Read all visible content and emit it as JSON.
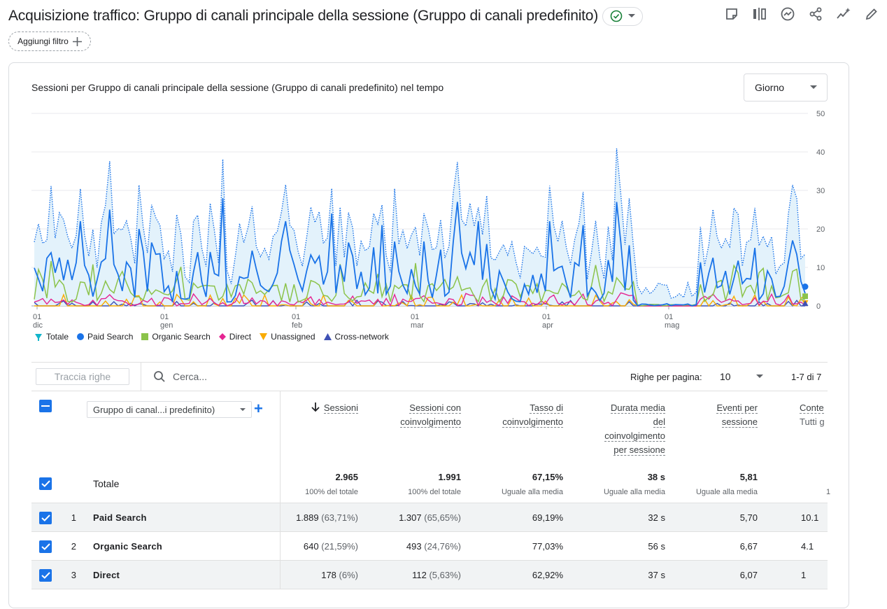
{
  "header": {
    "title": "Acquisizione traffico: Gruppo di canali principale della sessione (Gruppo di canali predefinito)",
    "add_filter_label": "Aggiungi filtro"
  },
  "toolbar_icons": [
    "note-icon",
    "compare-icon",
    "insights-icon",
    "share-icon",
    "sparkle-icon",
    "edit-icon"
  ],
  "chart_card": {
    "title": "Sessioni per Gruppo di canali principale della sessione (Gruppo di canali predefinito) nel tempo",
    "granularity": "Giorno"
  },
  "chart_data": {
    "type": "line",
    "title": "Sessioni per Gruppo di canali principale della sessione (Gruppo di canali predefinito) nel tempo",
    "x_ticks": [
      {
        "day": "01",
        "month": "dic"
      },
      {
        "day": "01",
        "month": "gen"
      },
      {
        "day": "01",
        "month": "feb"
      },
      {
        "day": "01",
        "month": "mar"
      },
      {
        "day": "01",
        "month": "apr"
      },
      {
        "day": "01",
        "month": "mag"
      }
    ],
    "y_ticks": [
      "0",
      "10",
      "20",
      "30",
      "40",
      "50"
    ],
    "ylim": [
      0,
      50
    ],
    "grid": true,
    "legend_position": "bottom-left",
    "series": [
      {
        "name": "Totale",
        "color": "#137333",
        "style": "dotted-area"
      },
      {
        "name": "Paid Search",
        "color": "#1a73e8"
      },
      {
        "name": "Organic Search",
        "color": "#8bc34a"
      },
      {
        "name": "Direct",
        "color": "#e52592"
      },
      {
        "name": "Unassigned",
        "color": "#f9ab00"
      },
      {
        "name": "Cross-network",
        "color": "#3f51b5"
      }
    ]
  },
  "table": {
    "track_rows_label": "Traccia righe",
    "search_placeholder": "Cerca...",
    "rows_per_page_label": "Righe per pagina:",
    "rows_per_page_value": "10",
    "pager_range": "1-7 di 7",
    "dimension_selector": "Gruppo di canal...i predefinito)",
    "columns": [
      {
        "lines": [
          "Sessioni"
        ],
        "sorted": true
      },
      {
        "lines": [
          "Sessioni con",
          "coinvolgimento"
        ]
      },
      {
        "lines": [
          "Tasso di",
          "coinvolgimento"
        ]
      },
      {
        "lines": [
          "Durata media",
          "del",
          "coinvolgimento",
          "per sessione"
        ]
      },
      {
        "lines": [
          "Eventi per",
          "sessione"
        ]
      },
      {
        "lines": [
          "Conte",
          "Tutti g"
        ]
      }
    ],
    "totals": {
      "label": "Totale",
      "values": [
        "2.965",
        "1.991",
        "67,15%",
        "38 s",
        "5,81",
        ""
      ],
      "subs": [
        "100% del totale",
        "100% del totale",
        "Uguale alla media",
        "Uguale alla media",
        "Uguale alla media",
        "1"
      ]
    },
    "rows": [
      {
        "idx": "1",
        "name": "Paid Search",
        "sessions": "1.889",
        "sessions_pct": "(63,71%)",
        "engaged": "1.307",
        "engaged_pct": "(65,65%)",
        "rate": "69,19%",
        "duration": "32 s",
        "events": "5,70",
        "conv": "10.1"
      },
      {
        "idx": "2",
        "name": "Organic Search",
        "sessions": "640",
        "sessions_pct": "(21,59%)",
        "engaged": "493",
        "engaged_pct": "(24,76%)",
        "rate": "77,03%",
        "duration": "56 s",
        "events": "6,67",
        "conv": "4.1"
      },
      {
        "idx": "3",
        "name": "Direct",
        "sessions": "178",
        "sessions_pct": "(6%)",
        "engaged": "112",
        "engaged_pct": "(5,63%)",
        "rate": "62,92%",
        "duration": "37 s",
        "events": "6,07",
        "conv": "1"
      }
    ]
  }
}
